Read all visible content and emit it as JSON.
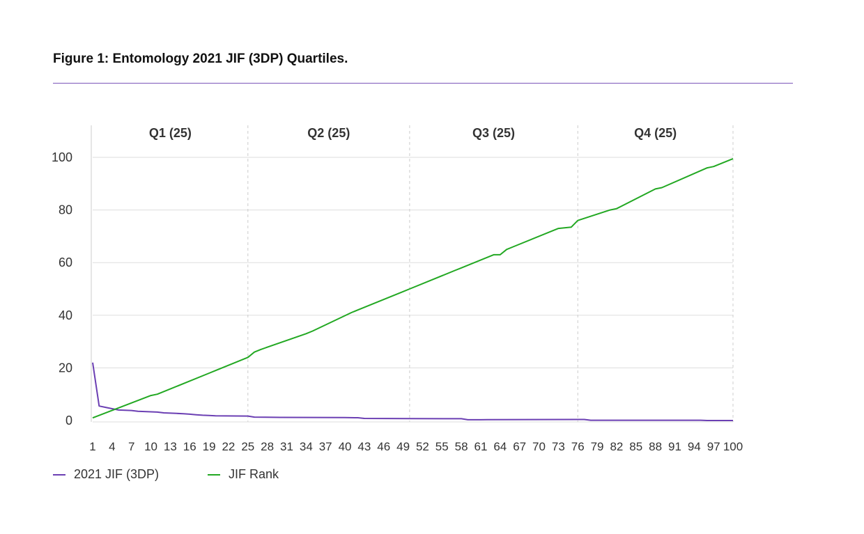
{
  "figure": {
    "title": "Figure 1: Entomology 2021 JIF (3DP) Quartiles."
  },
  "colors": {
    "jif": "#6b3fb3",
    "rank": "#22a822",
    "rule": "#7b55b8",
    "grid": "#dddddd"
  },
  "chart_data": {
    "type": "line",
    "x_tick_labels": [
      "1",
      "4",
      "7",
      "10",
      "13",
      "16",
      "19",
      "22",
      "25",
      "28",
      "31",
      "34",
      "37",
      "40",
      "43",
      "46",
      "49",
      "52",
      "55",
      "58",
      "61",
      "64",
      "67",
      "70",
      "73",
      "76",
      "79",
      "82",
      "85",
      "88",
      "91",
      "94",
      "97",
      "100"
    ],
    "xlim": [
      1,
      100
    ],
    "ylim": [
      0,
      100
    ],
    "y_ticks": [
      0,
      20,
      40,
      60,
      80,
      100
    ],
    "grid": true,
    "legend_position": "bottom-left",
    "quartile_bands": [
      {
        "label": "Q1 (25)",
        "start": 1,
        "end": 25
      },
      {
        "label": "Q2 (25)",
        "start": 25,
        "end": 50
      },
      {
        "label": "Q3 (25)",
        "start": 50,
        "end": 76
      },
      {
        "label": "Q4 (25)",
        "start": 76,
        "end": 100
      }
    ],
    "series": [
      {
        "name": "2021 JIF (3DP)",
        "color": "#6b3fb3",
        "points": [
          [
            1,
            22
          ],
          [
            2,
            5.5
          ],
          [
            3,
            5
          ],
          [
            4,
            4.5
          ],
          [
            5,
            4
          ],
          [
            6,
            3.9
          ],
          [
            7,
            3.8
          ],
          [
            8,
            3.5
          ],
          [
            9,
            3.4
          ],
          [
            10,
            3.3
          ],
          [
            11,
            3.2
          ],
          [
            12,
            2.9
          ],
          [
            13,
            2.8
          ],
          [
            14,
            2.7
          ],
          [
            15,
            2.6
          ],
          [
            16,
            2.4
          ],
          [
            17,
            2.2
          ],
          [
            18,
            2.0
          ],
          [
            19,
            1.9
          ],
          [
            20,
            1.8
          ],
          [
            25,
            1.7
          ],
          [
            26,
            1.3
          ],
          [
            30,
            1.2
          ],
          [
            40,
            1.1
          ],
          [
            42,
            1.05
          ],
          [
            43,
            0.8
          ],
          [
            50,
            0.75
          ],
          [
            58,
            0.7
          ],
          [
            59,
            0.3
          ],
          [
            61,
            0.3
          ],
          [
            62,
            0.35
          ],
          [
            76,
            0.4
          ],
          [
            77,
            0.4
          ],
          [
            78,
            0.1
          ],
          [
            95,
            0.1
          ],
          [
            96,
            0
          ],
          [
            100,
            0
          ]
        ]
      },
      {
        "name": "JIF Rank",
        "color": "#22a822",
        "points": [
          [
            1,
            1
          ],
          [
            10,
            9.5
          ],
          [
            11,
            10
          ],
          [
            19,
            18
          ],
          [
            20,
            19
          ],
          [
            25,
            24
          ],
          [
            26,
            26
          ],
          [
            27,
            27
          ],
          [
            34,
            33
          ],
          [
            35,
            34
          ],
          [
            41,
            41
          ],
          [
            42,
            42
          ],
          [
            49,
            49
          ],
          [
            50,
            50
          ],
          [
            57,
            57
          ],
          [
            58,
            58
          ],
          [
            63,
            63
          ],
          [
            64,
            63
          ],
          [
            65,
            65
          ],
          [
            66,
            66
          ],
          [
            73,
            73
          ],
          [
            75,
            73.5
          ],
          [
            76,
            76
          ],
          [
            81,
            80
          ],
          [
            82,
            80.5
          ],
          [
            88,
            88
          ],
          [
            89,
            88.5
          ],
          [
            96,
            96
          ],
          [
            97,
            96.5
          ],
          [
            100,
            99.5
          ]
        ]
      }
    ]
  }
}
